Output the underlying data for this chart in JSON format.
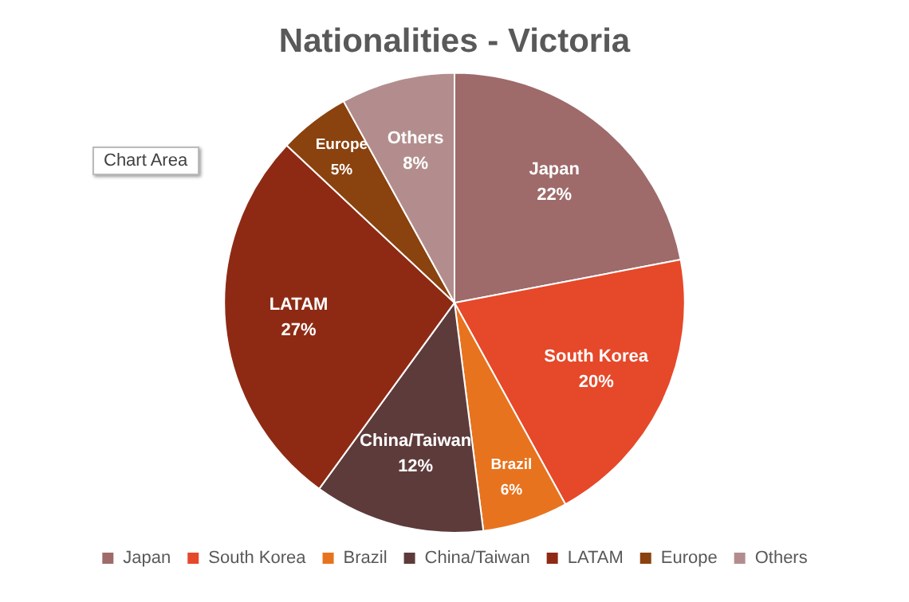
{
  "chart_data": {
    "type": "pie",
    "title": "Nationalities - Victoria",
    "categories": [
      "Japan",
      "South Korea",
      "Brazil",
      "China/Taiwan",
      "LATAM",
      "Europe",
      "Others"
    ],
    "values": [
      22,
      20,
      6,
      12,
      27,
      5,
      8
    ],
    "value_labels": [
      "22%",
      "20%",
      "6%",
      "12%",
      "27%",
      "5%",
      "8%"
    ],
    "colors": [
      "#9e6a6a",
      "#e6482a",
      "#e8731e",
      "#5e3b3b",
      "#8e2a14",
      "#8a420f",
      "#b38d8d"
    ],
    "legend": "bottom",
    "annotations": [
      "Chart Area"
    ]
  }
}
